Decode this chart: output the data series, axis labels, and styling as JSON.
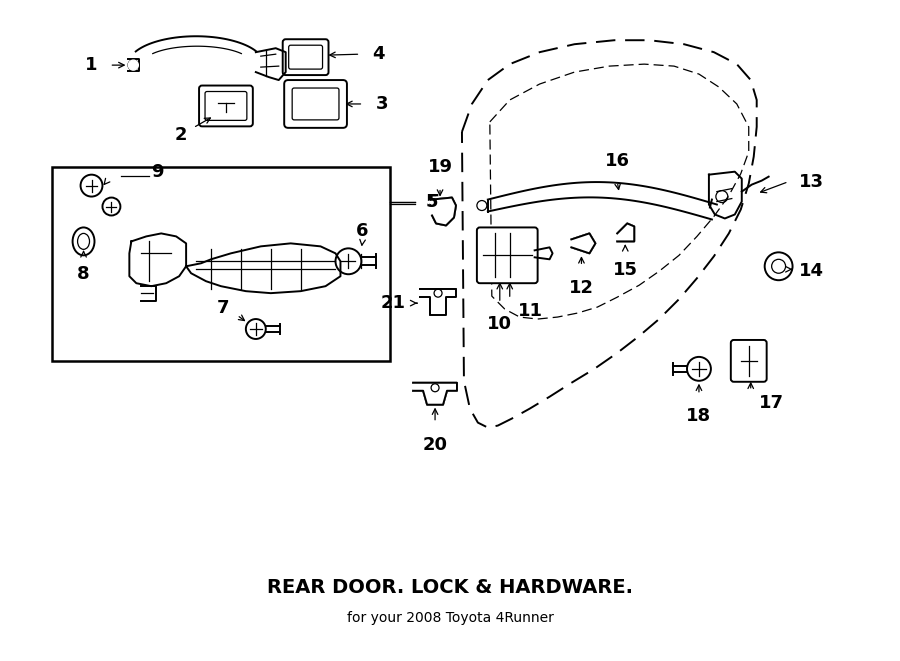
{
  "title": "REAR DOOR. LOCK & HARDWARE.",
  "subtitle": "for your 2008 Toyota 4Runner",
  "bg_color": "#ffffff",
  "line_color": "#000000",
  "fig_width": 9.0,
  "fig_height": 6.61,
  "dpi": 100
}
